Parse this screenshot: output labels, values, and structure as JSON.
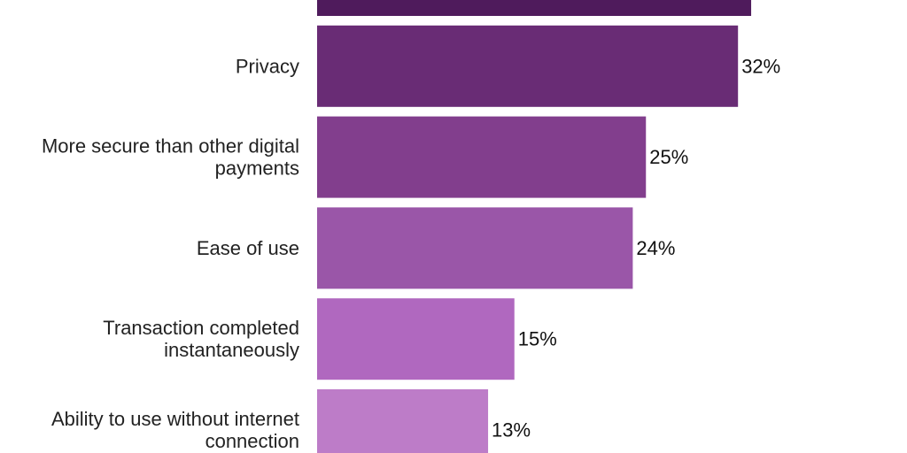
{
  "chart_data": {
    "type": "bar",
    "orientation": "horizontal",
    "categories": [
      "",
      "Privacy",
      "More secure than other digital payments",
      "Ease of use",
      "Transaction completed instantaneously",
      "Ability to use without internet connection"
    ],
    "category_lines": [
      [],
      [
        "Privacy"
      ],
      [
        "More secure than other digital",
        "payments"
      ],
      [
        "Ease of use"
      ],
      [
        "Transaction completed",
        "instantaneously"
      ],
      [
        "Ability to use without internet",
        "connection"
      ]
    ],
    "values": [
      33,
      32,
      25,
      24,
      15,
      13
    ],
    "value_labels": [
      "",
      "32%",
      "25%",
      "24%",
      "15%",
      "13%"
    ],
    "unit": "%",
    "colors": [
      "#4f1b5c",
      "#692c75",
      "#823e8d",
      "#9a56a8",
      "#b068bf",
      "#bd7cc8"
    ],
    "xlim": [
      0,
      46
    ],
    "grid": false,
    "legend": "none"
  }
}
